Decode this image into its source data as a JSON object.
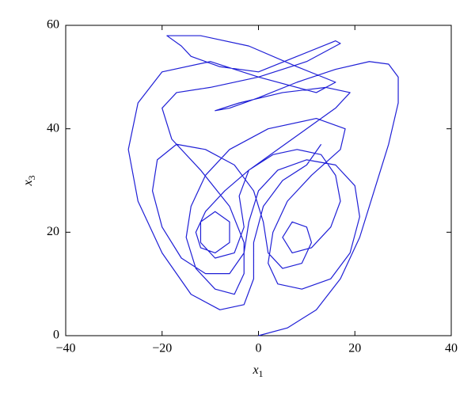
{
  "chart_data": {
    "type": "line",
    "xlabel": {
      "text": "x",
      "subscript": "1"
    },
    "ylabel": {
      "text": "x",
      "subscript": "3"
    },
    "xlim": [
      -40,
      40
    ],
    "xticks": [
      {
        "value": -40,
        "label": "−40"
      },
      {
        "value": -20,
        "label": "−20"
      },
      0,
      20,
      40
    ],
    "ylim": [
      0,
      60
    ],
    "yticks": [
      0,
      20,
      40,
      60
    ],
    "series": [
      {
        "color": "#1f1fd6",
        "x": [
          0,
          6,
          12,
          17,
          21,
          24,
          27,
          29,
          29,
          27,
          23,
          16,
          8,
          0,
          -6,
          -9,
          -4,
          5,
          14,
          19,
          16,
          10,
          4,
          -2,
          -7,
          -11,
          -13,
          -12,
          -9,
          -6,
          -6,
          -9,
          -12,
          -12,
          -9,
          -5,
          -3,
          -4,
          -2,
          3,
          8,
          13,
          16,
          17,
          15,
          11,
          7,
          5,
          7,
          10,
          11,
          9,
          5,
          2,
          1,
          -1,
          -5,
          -11,
          -17,
          -21,
          -22,
          -20,
          -16,
          -11,
          -6,
          -3,
          -2,
          0,
          4,
          10,
          16,
          20,
          21,
          19,
          15,
          9,
          4,
          2,
          3,
          6,
          11,
          17,
          18,
          12,
          2,
          -6,
          -11,
          -14,
          -15,
          -13,
          -9,
          -5,
          -3,
          -3,
          -6,
          -12,
          -18,
          -20,
          -17,
          -10,
          0,
          10,
          17,
          16,
          8,
          0,
          -8,
          -14,
          -16,
          -19,
          -12,
          -2,
          8,
          16,
          12,
          0,
          -10,
          -20,
          -25,
          -27,
          -25,
          -20,
          -14,
          -8,
          -3,
          -1,
          -1,
          1,
          5,
          10,
          13
        ],
        "values": [
          0,
          1.5,
          5,
          11,
          19,
          28,
          37,
          45,
          50,
          52.5,
          53,
          51.5,
          49,
          46,
          44,
          43.5,
          45,
          47,
          48,
          47,
          44,
          40,
          36,
          32,
          28,
          24,
          20,
          17,
          16,
          18,
          22,
          24,
          22,
          18,
          15,
          16,
          21,
          27,
          32,
          35,
          36,
          35,
          31,
          26,
          21,
          17,
          16,
          19,
          22,
          21,
          18,
          14,
          13,
          16,
          22,
          28,
          33,
          36,
          37,
          34,
          28,
          21,
          15,
          12,
          12,
          16,
          22,
          28,
          32,
          34,
          33,
          29,
          23,
          16,
          11,
          9,
          10,
          14,
          20,
          26,
          31,
          36,
          40,
          42,
          40,
          36,
          31,
          25,
          19,
          13,
          9,
          8,
          12,
          18,
          25,
          32,
          38,
          44,
          47,
          48,
          50,
          53,
          56.5,
          57,
          54,
          51,
          52,
          54,
          56,
          58,
          58,
          56,
          52,
          49,
          47,
          50,
          53,
          51,
          45,
          36,
          26,
          16,
          8,
          5,
          6,
          11,
          18,
          25,
          30,
          33,
          37
        ]
      }
    ]
  }
}
